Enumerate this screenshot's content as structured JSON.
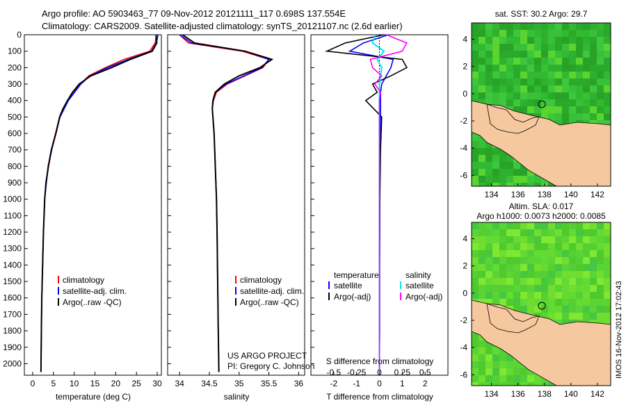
{
  "header": {
    "line1": "Argo profile: AO 5903463_77 09-Nov-2012 20121111_117 0.698S 137.554E",
    "line2": "Climatology: CARS2009. Satellite-adjusted climatology: synTS_20121107.nc (2.6d earlier)"
  },
  "footer": {
    "project": "US ARGO PROJECT",
    "pi": "PI: Gregory C. Johnson",
    "timestamp": "IMOS 16-Nov-2012 17:02:43"
  },
  "colors": {
    "climatology": "#ff0000",
    "satellite": "#0000ff",
    "argo": "#000000",
    "salinity_satellite": "#00e5ee",
    "salinity_argo": "#ff00ff",
    "land": "#f5c8a0",
    "ocean_green": "#33cc33",
    "ocean_light": "#99ee33"
  },
  "chart_data": [
    {
      "type": "line",
      "panel": "temperature",
      "xlabel": "temperature (deg C)",
      "ylabel": "",
      "xticks": [
        "0",
        "5",
        "10",
        "15",
        "20",
        "25",
        "30"
      ],
      "yticks": [
        "0",
        "100",
        "200",
        "300",
        "400",
        "500",
        "600",
        "700",
        "800",
        "900",
        "1000",
        "1100",
        "1200",
        "1300",
        "1400",
        "1500",
        "1600",
        "1700",
        "1800",
        "1900",
        "2000"
      ],
      "xlim": [
        -2,
        31
      ],
      "ylim": [
        2070,
        0
      ],
      "legend": [
        "climatology",
        "satellite-adj. clim.",
        "Argo(..raw -QC)"
      ],
      "series": [
        {
          "name": "climatology",
          "x": [
            29.8,
            29.5,
            28.2,
            22,
            17.5,
            13.5,
            11.5,
            10,
            8.5,
            7.5,
            6.5,
            5.5,
            4.5,
            3.7,
            3.3,
            2.9,
            2.6,
            2.4,
            2.2,
            2.1,
            2.0
          ],
          "y": [
            0,
            50,
            100,
            150,
            200,
            250,
            300,
            350,
            400,
            450,
            500,
            600,
            700,
            800,
            900,
            1000,
            1200,
            1400,
            1600,
            1800,
            2050
          ]
        },
        {
          "name": "satellite-adj. clim.",
          "x": [
            30.2,
            29.8,
            28.6,
            23,
            18,
            13.8,
            11.6,
            10.1,
            8.6,
            7.6,
            6.6,
            5.6,
            4.6,
            3.8,
            3.3,
            2.9,
            2.6,
            2.4,
            2.2,
            2.1,
            2.0
          ],
          "y": [
            0,
            50,
            100,
            150,
            200,
            250,
            300,
            350,
            400,
            450,
            500,
            600,
            700,
            800,
            900,
            1000,
            1200,
            1400,
            1600,
            1800,
            2050
          ]
        },
        {
          "name": "Argo(..raw -QC)",
          "x": [
            29.7,
            29.9,
            28.8,
            23.5,
            19,
            14,
            11.2,
            9.6,
            8.4,
            7.3,
            6.5,
            5.6,
            4.5,
            3.8,
            3.2,
            2.9,
            2.6,
            2.4,
            2.2,
            2.1,
            2.0
          ],
          "y": [
            0,
            50,
            100,
            150,
            200,
            250,
            300,
            350,
            400,
            450,
            500,
            600,
            700,
            800,
            900,
            1000,
            1200,
            1400,
            1600,
            1800,
            2050
          ]
        }
      ]
    },
    {
      "type": "line",
      "panel": "salinity",
      "xlabel": "salinity",
      "ylabel": "",
      "xticks": [
        "34",
        "34.5",
        "35",
        "35.5",
        "36"
      ],
      "xlim": [
        33.8,
        36.1
      ],
      "ylim": [
        2070,
        0
      ],
      "legend": [
        "climatology",
        "satellite-adj. clim.",
        "Argo(..raw -QC)"
      ],
      "series": [
        {
          "name": "climatology",
          "x": [
            34.0,
            34.15,
            35.05,
            35.5,
            35.4,
            35.1,
            34.8,
            34.62,
            34.57,
            34.55,
            34.56,
            34.58,
            34.6,
            34.62,
            34.63,
            34.64,
            34.65,
            34.66
          ],
          "y": [
            0,
            50,
            100,
            150,
            200,
            250,
            300,
            350,
            400,
            450,
            500,
            600,
            800,
            1000,
            1200,
            1500,
            1800,
            2050
          ]
        },
        {
          "name": "satellite-adj. clim.",
          "x": [
            34.0,
            34.2,
            35.1,
            35.5,
            35.38,
            35.08,
            34.78,
            34.6,
            34.56,
            34.55,
            34.56,
            34.58,
            34.6,
            34.62,
            34.63,
            34.64,
            34.65,
            34.66
          ],
          "y": [
            0,
            50,
            100,
            150,
            200,
            250,
            300,
            350,
            400,
            450,
            500,
            600,
            800,
            1000,
            1200,
            1500,
            1800,
            2050
          ]
        },
        {
          "name": "Argo(..raw -QC)",
          "x": [
            34.05,
            34.25,
            35.1,
            35.55,
            35.35,
            35.0,
            34.75,
            34.6,
            34.56,
            34.55,
            34.56,
            34.58,
            34.6,
            34.62,
            34.63,
            34.64,
            34.65,
            34.66
          ],
          "y": [
            0,
            50,
            100,
            150,
            200,
            250,
            300,
            350,
            400,
            450,
            500,
            600,
            800,
            1000,
            1200,
            1500,
            1800,
            2050
          ]
        }
      ]
    },
    {
      "type": "line",
      "panel": "difference",
      "xlabel": "T difference from climatology",
      "xlabel2": "S difference from climatology",
      "xticks": [
        "-2",
        "-1",
        "0",
        "1",
        "2"
      ],
      "xticks_s": [
        "-0.5",
        "-0.25",
        "0",
        "0.25",
        "0.5"
      ],
      "xlim": [
        -3,
        3
      ],
      "ylim": [
        2070,
        0
      ],
      "legend_left_title": "temperature",
      "legend_right_title": "salinity",
      "legend": [
        "satellite",
        "Argo(-adj)",
        "satellite",
        "Argo(-adj)"
      ],
      "series": [
        {
          "name": "temperature satellite",
          "x": [
            0.4,
            -0.7,
            -1.3,
            0.6,
            0.5,
            0.3,
            0.1,
            0.05,
            0.05,
            0.05,
            0.02,
            0.02,
            0.01,
            0.01,
            0
          ],
          "y": [
            0,
            50,
            100,
            150,
            200,
            250,
            300,
            350,
            400,
            500,
            700,
            1000,
            1400,
            1800,
            2050
          ]
        },
        {
          "name": "temperature Argo(-adj)",
          "x": [
            0.2,
            -1.5,
            -2.3,
            1.0,
            1.2,
            0.5,
            -0.3,
            -0.1,
            -0.6,
            0.1,
            0.05,
            0.02,
            0.01,
            0.01,
            0
          ],
          "y": [
            0,
            50,
            100,
            150,
            200,
            250,
            300,
            350,
            400,
            500,
            700,
            1000,
            1400,
            1800,
            2050
          ]
        },
        {
          "name": "salinity satellite",
          "x": [
            -0.2,
            -0.3,
            0.2,
            -0.1,
            0.1,
            0.05,
            0,
            0,
            0,
            0,
            0,
            0,
            0,
            0,
            0
          ],
          "y": [
            0,
            50,
            100,
            150,
            200,
            250,
            300,
            350,
            400,
            500,
            700,
            1000,
            1400,
            1800,
            2050
          ]
        },
        {
          "name": "salinity Argo(-adj)",
          "x": [
            0.3,
            1.2,
            1.0,
            -0.4,
            -0.3,
            0.1,
            -0.2,
            0.05,
            0,
            0,
            0,
            0,
            0,
            0,
            0
          ],
          "y": [
            0,
            50,
            100,
            150,
            200,
            250,
            300,
            350,
            400,
            500,
            700,
            1000,
            1400,
            1800,
            2050
          ]
        }
      ]
    },
    {
      "type": "heatmap",
      "panel": "sst_map",
      "title": "sat. SST: 30.2 Argo: 29.7",
      "xticks": [
        "134",
        "136",
        "138",
        "140",
        "142"
      ],
      "yticks": [
        "4",
        "2",
        "0",
        "-2",
        "-4",
        "-6"
      ],
      "xlim": [
        132.5,
        143
      ],
      "ylim": [
        -6.8,
        5.2
      ]
    },
    {
      "type": "heatmap",
      "panel": "sla_map",
      "title": "Altim. SLA: 0.017",
      "subtitle": "Argo h1000: 0.0073 h2000: 0.0085",
      "xticks": [
        "134",
        "136",
        "138",
        "140",
        "142"
      ],
      "yticks": [
        "4",
        "2",
        "0",
        "-2",
        "-4",
        "-6"
      ],
      "xlim": [
        132.5,
        143
      ],
      "ylim": [
        -6.8,
        5.2
      ]
    }
  ]
}
